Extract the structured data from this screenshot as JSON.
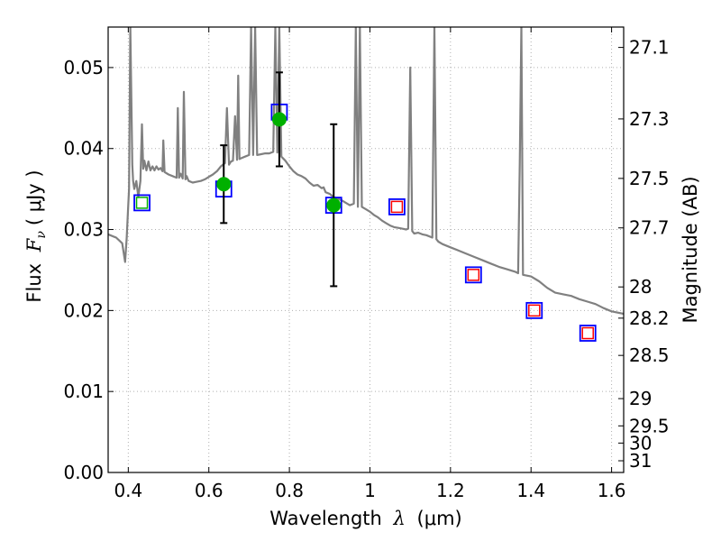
{
  "chart_data": {
    "type": "scatter",
    "xlabel": "Wavelength",
    "xlabel_symbol": "λ",
    "xlabel_unit": "(μm)",
    "ylabel": "Flux",
    "ylabel_symbol": "F",
    "ylabel_sub": "ν",
    "ylabel_unit": "( μJy )",
    "ylabel_right": "Magnitude (AB)",
    "xlim": [
      0.35,
      1.63
    ],
    "ylim": [
      0.0,
      0.055
    ],
    "grid": true,
    "x_ticks": [
      0.4,
      0.6,
      0.8,
      1.0,
      1.2,
      1.4,
      1.6
    ],
    "x_tick_labels": [
      "0.4",
      "0.6",
      "0.8",
      "1",
      "1.2",
      "1.4",
      "1.6"
    ],
    "y_ticks": [
      0.0,
      0.01,
      0.02,
      0.03,
      0.04,
      0.05
    ],
    "y_tick_labels": [
      "0.00",
      "0.01",
      "0.02",
      "0.03",
      "0.04",
      "0.05"
    ],
    "mag_ticks": [
      27.1,
      27.3,
      27.5,
      27.7,
      28,
      28.2,
      28.5,
      29,
      29.5,
      30,
      31
    ],
    "mag_tick_labels": [
      "27.1",
      "27.3",
      "27.5",
      "27.7",
      "28",
      "28.2",
      "28.5",
      "29",
      "29.5",
      "30",
      "31"
    ],
    "series": [
      {
        "role": "model_sed",
        "color": "#808080",
        "x": [
          0.35,
          0.37,
          0.385,
          0.392,
          0.396,
          0.4,
          0.402,
          0.405,
          0.41,
          0.412,
          0.415,
          0.42,
          0.425,
          0.43,
          0.434,
          0.437,
          0.44,
          0.445,
          0.45,
          0.455,
          0.46,
          0.465,
          0.47,
          0.475,
          0.48,
          0.485,
          0.487,
          0.49,
          0.5,
          0.51,
          0.52,
          0.523,
          0.526,
          0.53,
          0.535,
          0.538,
          0.542,
          0.545,
          0.548,
          0.55,
          0.56,
          0.57,
          0.58,
          0.59,
          0.6,
          0.61,
          0.62,
          0.63,
          0.64,
          0.645,
          0.65,
          0.655,
          0.66,
          0.665,
          0.67,
          0.673,
          0.676,
          0.68,
          0.69,
          0.7,
          0.705,
          0.71,
          0.715,
          0.72,
          0.73,
          0.74,
          0.75,
          0.76,
          0.765,
          0.77,
          0.775,
          0.78,
          0.79,
          0.8,
          0.81,
          0.82,
          0.83,
          0.84,
          0.85,
          0.86,
          0.87,
          0.88,
          0.885,
          0.89,
          0.9,
          0.91,
          0.92,
          0.93,
          0.94,
          0.95,
          0.96,
          0.965,
          0.97,
          0.975,
          0.98,
          0.99,
          1.0,
          1.01,
          1.02,
          1.03,
          1.04,
          1.05,
          1.06,
          1.07,
          1.08,
          1.09,
          1.095,
          1.1,
          1.105,
          1.11,
          1.12,
          1.13,
          1.14,
          1.15,
          1.155,
          1.16,
          1.165,
          1.17,
          1.18,
          1.2,
          1.22,
          1.24,
          1.26,
          1.28,
          1.3,
          1.32,
          1.34,
          1.36,
          1.368,
          1.372,
          1.376,
          1.38,
          1.4,
          1.42,
          1.44,
          1.46,
          1.48,
          1.5,
          1.52,
          1.54,
          1.56,
          1.58,
          1.6,
          1.63
        ],
        "y": [
          0.0294,
          0.029,
          0.0283,
          0.026,
          0.029,
          0.033,
          0.035,
          0.055,
          0.038,
          0.036,
          0.035,
          0.036,
          0.034,
          0.036,
          0.043,
          0.0375,
          0.0385,
          0.0373,
          0.0384,
          0.0373,
          0.0378,
          0.0373,
          0.0378,
          0.0374,
          0.0376,
          0.0372,
          0.041,
          0.0371,
          0.0368,
          0.0366,
          0.0364,
          0.045,
          0.0364,
          0.0369,
          0.0363,
          0.047,
          0.0362,
          0.0366,
          0.0362,
          0.036,
          0.0358,
          0.0359,
          0.036,
          0.0362,
          0.0365,
          0.0368,
          0.0372,
          0.0378,
          0.0382,
          0.045,
          0.038,
          0.0384,
          0.0385,
          0.044,
          0.0386,
          0.049,
          0.0387,
          0.0388,
          0.039,
          0.0392,
          0.055,
          0.0392,
          0.055,
          0.0392,
          0.0393,
          0.0394,
          0.0394,
          0.0396,
          0.055,
          0.0395,
          0.055,
          0.039,
          0.0385,
          0.0378,
          0.0372,
          0.0368,
          0.0366,
          0.0363,
          0.0358,
          0.0354,
          0.0355,
          0.0351,
          0.0352,
          0.0346,
          0.0344,
          0.034,
          0.0338,
          0.0336,
          0.0333,
          0.033,
          0.0332,
          0.055,
          0.0328,
          0.055,
          0.0328,
          0.0325,
          0.0322,
          0.0318,
          0.0315,
          0.0311,
          0.0308,
          0.0305,
          0.0303,
          0.0302,
          0.0301,
          0.03,
          0.0301,
          0.05,
          0.0298,
          0.0295,
          0.0296,
          0.0294,
          0.0293,
          0.0291,
          0.029,
          0.055,
          0.0288,
          0.0285,
          0.0282,
          0.0278,
          0.0274,
          0.027,
          0.0266,
          0.0262,
          0.0258,
          0.0254,
          0.0251,
          0.0248,
          0.0246,
          0.038,
          0.055,
          0.0244,
          0.0242,
          0.0236,
          0.0228,
          0.0222,
          0.022,
          0.0218,
          0.0214,
          0.0211,
          0.0208,
          0.0203,
          0.0199,
          0.0196
        ]
      },
      {
        "role": "model_photometry",
        "marker": "square",
        "color": "#0000ff",
        "x": [
          0.434,
          0.637,
          0.775,
          0.91,
          1.067,
          1.257,
          1.408,
          1.541
        ],
        "y": [
          0.0333,
          0.035,
          0.0445,
          0.033,
          0.0328,
          0.0244,
          0.02,
          0.0172
        ]
      },
      {
        "role": "detections",
        "marker": "circle",
        "color": "#00b000",
        "x": [
          0.637,
          0.775,
          0.91
        ],
        "y": [
          0.0356,
          0.0436,
          0.033
        ],
        "y_err_low": [
          0.0048,
          0.0058,
          0.01
        ],
        "y_err_high": [
          0.0048,
          0.0058,
          0.01
        ]
      },
      {
        "role": "filter_0.43",
        "marker": "square",
        "color": "#00b000",
        "x": [
          0.434
        ],
        "y": [
          0.0333
        ]
      },
      {
        "role": "upper_limits",
        "marker": "square",
        "color": "#ff0000",
        "x": [
          1.067,
          1.257,
          1.408,
          1.541
        ],
        "y": [
          0.0328,
          0.0244,
          0.02,
          0.0172
        ]
      }
    ]
  }
}
